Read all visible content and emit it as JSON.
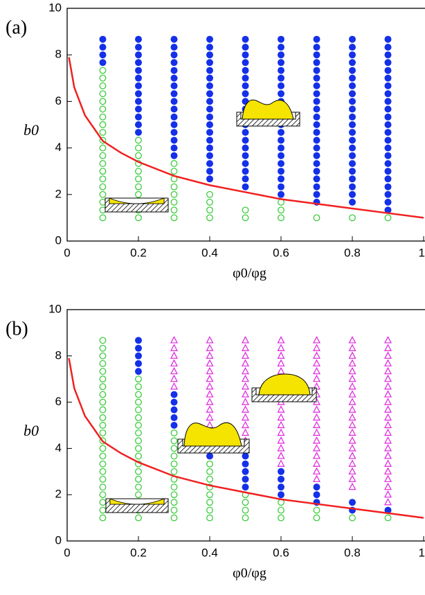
{
  "chart_data": [
    {
      "type": "scatter",
      "label": "(a)",
      "x_label": "φ0/φg",
      "y_label": "b0",
      "xlim": [
        0,
        1
      ],
      "ylim": [
        0,
        10
      ],
      "xticks": [
        0,
        0.2,
        0.4,
        0.6,
        0.8,
        1
      ],
      "yticks": [
        0,
        2,
        4,
        6,
        8,
        10
      ],
      "series": [
        {
          "marker": "filled-circle",
          "color": "#1430e8",
          "columns": [
            {
              "x": 0.1,
              "y": [
                8.67,
                8.33,
                8,
                7.67
              ]
            },
            {
              "x": 0.2,
              "y": [
                8.67,
                8.33,
                8,
                7.67,
                7.33,
                7,
                6.67,
                6.33,
                6,
                5.67,
                5.33,
                5,
                4.67
              ]
            },
            {
              "x": 0.3,
              "y": [
                8.67,
                8.33,
                8,
                7.67,
                7.33,
                7,
                6.67,
                6.33,
                6,
                5.67,
                5.33,
                5,
                4.67,
                4.33,
                4,
                3.67
              ]
            },
            {
              "x": 0.4,
              "y": [
                8.67,
                8.33,
                8,
                7.67,
                7.33,
                7,
                6.67,
                6.33,
                6,
                5.67,
                5.33,
                5,
                4.67,
                4.33,
                4,
                3.67,
                3.33,
                3,
                2.67
              ]
            },
            {
              "x": 0.5,
              "y": [
                8.67,
                8.33,
                8,
                7.67,
                7.33,
                7,
                6.67,
                6.33,
                6,
                5.67,
                5.33,
                5,
                4.67,
                4.33,
                4,
                3.67,
                3.33,
                3,
                2.67,
                2.33
              ]
            },
            {
              "x": 0.6,
              "y": [
                8.67,
                8.33,
                8,
                7.67,
                7.33,
                7,
                6.67,
                6.33,
                6,
                5.67,
                5.33,
                5,
                4.67,
                4.33,
                4,
                3.67,
                3.33,
                3,
                2.67,
                2.33,
                2
              ]
            },
            {
              "x": 0.7,
              "y": [
                8.67,
                8.33,
                8,
                7.67,
                7.33,
                7,
                6.67,
                6.33,
                6,
                5.67,
                5.33,
                5,
                4.67,
                4.33,
                4,
                3.67,
                3.33,
                3,
                2.67,
                2.33,
                2,
                1.67
              ]
            },
            {
              "x": 0.8,
              "y": [
                8.67,
                8.33,
                8,
                7.67,
                7.33,
                7,
                6.67,
                6.33,
                6,
                5.67,
                5.33,
                5,
                4.67,
                4.33,
                4,
                3.67,
                3.33,
                3,
                2.67,
                2.33,
                2,
                1.67
              ]
            },
            {
              "x": 0.9,
              "y": [
                8.67,
                8.33,
                8,
                7.67,
                7.33,
                7,
                6.67,
                6.33,
                6,
                5.67,
                5.33,
                5,
                4.67,
                4.33,
                4,
                3.67,
                3.33,
                3,
                2.67,
                2.33,
                2,
                1.67,
                1.33
              ]
            }
          ]
        },
        {
          "marker": "open-circle",
          "color": "#3ccc3c",
          "columns": [
            {
              "x": 0.1,
              "y": [
                7.33,
                7,
                6.67,
                6.33,
                6,
                5.67,
                5.33,
                5,
                4.67,
                4.33,
                4,
                3.67,
                3.33,
                3,
                2.67,
                2.33,
                2,
                1.67,
                1.33,
                1
              ]
            },
            {
              "x": 0.2,
              "y": [
                4.33,
                4,
                3.67,
                3.33,
                3,
                2.67,
                2.33,
                2,
                1.67,
                1.33,
                1
              ]
            },
            {
              "x": 0.3,
              "y": [
                3.33,
                3,
                2.67,
                2.33,
                2,
                1.67,
                1.33,
                1
              ]
            },
            {
              "x": 0.4,
              "y": [
                2,
                1.67,
                1.33,
                1
              ]
            },
            {
              "x": 0.5,
              "y": [
                1.33,
                1
              ]
            },
            {
              "x": 0.6,
              "y": [
                1.67,
                1.33,
                1
              ]
            },
            {
              "x": 0.7,
              "y": [
                1
              ]
            },
            {
              "x": 0.8,
              "y": [
                1
              ]
            },
            {
              "x": 0.9,
              "y": [
                1
              ]
            }
          ]
        },
        {
          "marker": "line",
          "color": "#f02020",
          "x": [
            0.005,
            0.02,
            0.05,
            0.1,
            0.15,
            0.2,
            0.3,
            0.4,
            0.5,
            0.6,
            0.7,
            0.8,
            0.9,
            1
          ],
          "values": [
            7.9,
            6.6,
            5.4,
            4.3,
            3.8,
            3.4,
            2.8,
            2.4,
            2.1,
            1.8,
            1.6,
            1.4,
            1.2,
            1
          ]
        }
      ]
    },
    {
      "type": "scatter",
      "label": "(b)",
      "x_label": "φ0/φg",
      "y_label": "b0",
      "xlim": [
        0,
        1
      ],
      "ylim": [
        0,
        10
      ],
      "xticks": [
        0,
        0.2,
        0.4,
        0.6,
        0.8,
        1
      ],
      "yticks": [
        0,
        2,
        4,
        6,
        8,
        10
      ],
      "series": [
        {
          "marker": "open-triangle",
          "color": "#e020e0",
          "columns": [
            {
              "x": 0.3,
              "y": [
                8.67,
                8.33,
                8,
                7.67,
                7.33,
                7,
                6.67
              ]
            },
            {
              "x": 0.4,
              "y": [
                8.67,
                8.33,
                8,
                7.67,
                7.33,
                7,
                6.67,
                6.33,
                6,
                5.67,
                5.33,
                5
              ]
            },
            {
              "x": 0.5,
              "y": [
                8.67,
                8.33,
                8,
                7.67,
                7.33,
                7,
                6.67,
                6.33,
                6,
                5.67,
                5.33,
                5,
                4.67,
                4.33,
                4
              ]
            },
            {
              "x": 0.6,
              "y": [
                8.67,
                8.33,
                8,
                7.67,
                7.33,
                7,
                6.67,
                6.33,
                6,
                5.67,
                5.33,
                5,
                4.67,
                4.33,
                4,
                3.67,
                3.33
              ]
            },
            {
              "x": 0.7,
              "y": [
                8.67,
                8.33,
                8,
                7.67,
                7.33,
                7,
                6.67,
                6.33,
                6,
                5.67,
                5.33,
                5,
                4.67,
                4.33,
                4,
                3.67,
                3.33,
                3,
                2.67
              ]
            },
            {
              "x": 0.8,
              "y": [
                8.67,
                8.33,
                8,
                7.67,
                7.33,
                7,
                6.67,
                6.33,
                6,
                5.67,
                5.33,
                5,
                4.67,
                4.33,
                4,
                3.67,
                3.33,
                3,
                2.67,
                2.33
              ]
            },
            {
              "x": 0.9,
              "y": [
                8.67,
                8.33,
                8,
                7.67,
                7.33,
                7,
                6.67,
                6.33,
                6,
                5.67,
                5.33,
                5,
                4.67,
                4.33,
                4,
                3.67,
                3.33,
                3,
                2.67,
                2.33,
                2,
                1.67
              ]
            }
          ]
        },
        {
          "marker": "filled-circle",
          "color": "#1430e8",
          "columns": [
            {
              "x": 0.2,
              "y": [
                8.67,
                8.33,
                8,
                7.67,
                7.33
              ]
            },
            {
              "x": 0.3,
              "y": [
                6.33,
                6,
                5.67,
                5.33,
                5
              ]
            },
            {
              "x": 0.4,
              "y": [
                4.67,
                4.33,
                4,
                3.67
              ]
            },
            {
              "x": 0.5,
              "y": [
                3.67,
                3.33,
                3,
                2.67,
                2.33
              ]
            },
            {
              "x": 0.6,
              "y": [
                3,
                2.67,
                2.33,
                2
              ]
            },
            {
              "x": 0.7,
              "y": [
                2.33,
                2,
                1.67
              ]
            },
            {
              "x": 0.8,
              "y": [
                1.67,
                1.33
              ]
            },
            {
              "x": 0.9,
              "y": [
                1.33
              ]
            }
          ]
        },
        {
          "marker": "open-circle",
          "color": "#3ccc3c",
          "columns": [
            {
              "x": 0.1,
              "y": [
                8.67,
                8.33,
                8,
                7.67,
                7.33,
                7,
                6.67,
                6.33,
                6,
                5.67,
                5.33,
                5,
                4.67,
                4.33,
                4,
                3.67,
                3.33,
                3,
                2.67,
                2.33,
                2,
                1.67,
                1.33,
                1
              ]
            },
            {
              "x": 0.2,
              "y": [
                7,
                6.67,
                6.33,
                6,
                5.67,
                5.33,
                5,
                4.67,
                4.33,
                4,
                3.67,
                3.33,
                3,
                2.67,
                2.33,
                2,
                1.67,
                1.33,
                1
              ]
            },
            {
              "x": 0.3,
              "y": [
                4.67,
                4.33,
                4,
                3.67,
                3.33,
                3,
                2.67,
                2.33,
                2,
                1.67,
                1.33,
                1
              ]
            },
            {
              "x": 0.4,
              "y": [
                3.33,
                3,
                2.67,
                2.33,
                2,
                1.67,
                1.33,
                1
              ]
            },
            {
              "x": 0.5,
              "y": [
                2,
                1.67,
                1.33,
                1
              ]
            },
            {
              "x": 0.6,
              "y": [
                1.67,
                1.33,
                1
              ]
            },
            {
              "x": 0.7,
              "y": [
                1.33,
                1
              ]
            },
            {
              "x": 0.8,
              "y": [
                1
              ]
            },
            {
              "x": 0.9,
              "y": [
                1
              ]
            }
          ]
        },
        {
          "marker": "line",
          "color": "#f02020",
          "x": [
            0.005,
            0.02,
            0.05,
            0.1,
            0.15,
            0.2,
            0.3,
            0.4,
            0.5,
            0.6,
            0.7,
            0.8,
            0.9,
            1
          ],
          "values": [
            7.9,
            6.6,
            5.4,
            4.3,
            3.8,
            3.4,
            2.8,
            2.4,
            2.1,
            1.8,
            1.6,
            1.4,
            1.2,
            1
          ]
        }
      ]
    }
  ]
}
